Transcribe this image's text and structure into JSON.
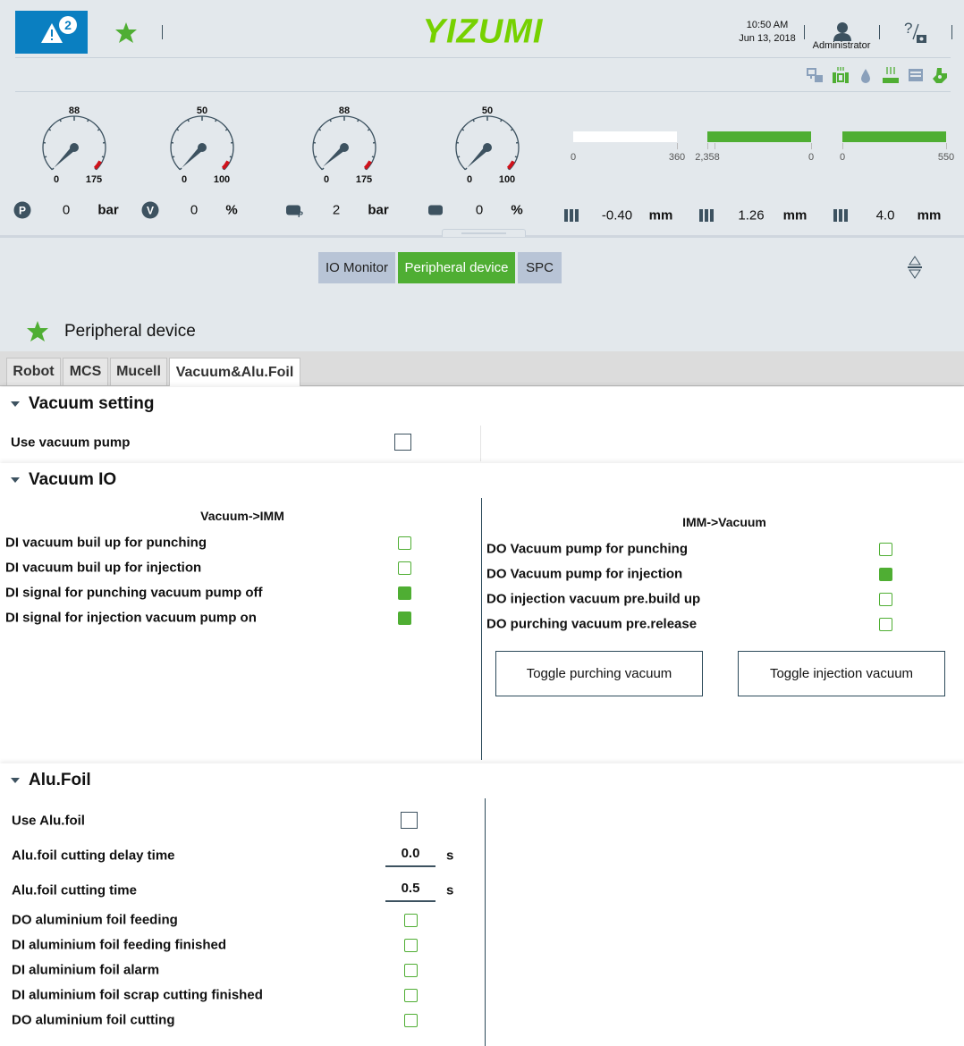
{
  "header": {
    "alarm_count": "2",
    "logo": "YIZUMI",
    "time": "10:50 AM",
    "date": "Jun 13, 2018",
    "user": "Administrator",
    "help_icon": "help-screenshot-icon"
  },
  "status_icons": [
    "network-icon",
    "heating-mold-icon",
    "water-drop-icon",
    "heater-icon",
    "printer-icon",
    "robot-hand-icon"
  ],
  "gauges": [
    {
      "top": "88",
      "min": "0",
      "max": "175",
      "value": "0",
      "unit": "bar",
      "icon": "pressure-icon",
      "icon_text": "P",
      "level": 0
    },
    {
      "top": "50",
      "min": "0",
      "max": "100",
      "value": "0",
      "unit": "%",
      "icon": "velocity-icon",
      "icon_text": "V",
      "level": 0
    },
    {
      "top": "88",
      "min": "0",
      "max": "175",
      "value": "2",
      "unit": "bar",
      "icon": "back-pressure-icon",
      "icon_text": "P",
      "level": 0.011
    },
    {
      "top": "50",
      "min": "0",
      "max": "100",
      "value": "0",
      "unit": "%",
      "icon": "screw-speed-icon",
      "icon_text": "",
      "level": 0
    }
  ],
  "bars": [
    {
      "min": "0",
      "max": "360",
      "fill": 0,
      "value": "-0.40",
      "unit": "mm",
      "icon": "mold-position-icon"
    },
    {
      "min": "2,358",
      "max": "0",
      "fill": 1,
      "value": "1.26",
      "unit": "mm",
      "icon": "mold-open-icon"
    },
    {
      "min": "0",
      "max": "550",
      "fill": 1,
      "value": "4.0",
      "unit": "mm",
      "icon": "screw-position-icon"
    }
  ],
  "colors": {
    "accent": "#4fae33",
    "alarm": "#0a7fc1",
    "logo": "#76d100",
    "needle": "#3d5260",
    "danger": "#d0121b"
  },
  "nav": {
    "tabs": [
      "IO Monitor",
      "Peripheral device",
      "SPC"
    ],
    "active": 1
  },
  "page": {
    "title": "Peripheral device",
    "subtabs": [
      "Robot",
      "MCS",
      "Mucell",
      "Vacuum&Alu.Foil"
    ],
    "active_subtab": 3
  },
  "vacuum_setting": {
    "title": "Vacuum setting",
    "use_label": "Use vacuum pump",
    "use_checked": false
  },
  "vacuum_io": {
    "title": "Vacuum IO",
    "left_header": "Vacuum->IMM",
    "left": [
      {
        "label": "DI vacuum buil up for punching",
        "on": false
      },
      {
        "label": "DI vacuum buil up for injection",
        "on": false
      },
      {
        "label": "DI signal for punching vacuum pump off",
        "on": true
      },
      {
        "label": "DI signal for injection vacuum pump on",
        "on": true
      }
    ],
    "right_header": "IMM->Vacuum",
    "right": [
      {
        "label": "DO Vacuum pump for punching",
        "on": false
      },
      {
        "label": "DO Vacuum pump for injection",
        "on": true
      },
      {
        "label": "DO injection vacuum pre.build up",
        "on": false
      },
      {
        "label": "DO purching vacuum pre.release",
        "on": false
      }
    ],
    "buttons": [
      "Toggle purching vacuum",
      "Toggle injection vacuum"
    ]
  },
  "alu_foil": {
    "title": "Alu.Foil",
    "use_label": "Use Alu.foil",
    "use_checked": false,
    "delay_label": "Alu.foil cutting delay time",
    "delay_value": "0.0",
    "cut_label": "Alu.foil cutting time",
    "cut_value": "0.5",
    "unit": "s",
    "signals": [
      {
        "label": "DO aluminium foil feeding",
        "on": false
      },
      {
        "label": "DI aluminium foil feeding finished",
        "on": false
      },
      {
        "label": "DI aluminium foil alarm",
        "on": false
      },
      {
        "label": "DI aluminium foil scrap cutting finished",
        "on": false
      },
      {
        "label": "DO aluminium foil cutting",
        "on": false
      }
    ]
  }
}
